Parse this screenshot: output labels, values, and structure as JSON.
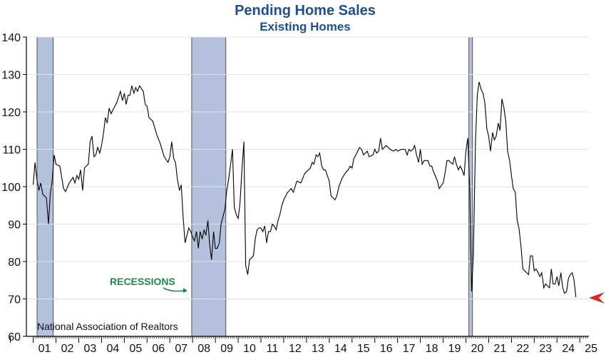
{
  "chart_data": {
    "type": "line",
    "title": "Pending Home Sales",
    "subtitle": "Existing Homes",
    "source": "National Association of Realtors",
    "annotation": "RECESSIONS",
    "ylim": [
      60,
      140
    ],
    "y_ticks": [
      "140",
      "130",
      "120",
      "110",
      "100",
      "90",
      "80",
      "70",
      "60"
    ],
    "xlim": [
      2000.7,
      2025.4
    ],
    "x_tick_labels": [
      "01",
      "02",
      "03",
      "04",
      "05",
      "06",
      "07",
      "08",
      "09",
      "10",
      "11",
      "12",
      "13",
      "14",
      "15",
      "16",
      "17",
      "18",
      "19",
      "20",
      "21",
      "22",
      "23",
      "24",
      "25"
    ],
    "grid": true,
    "colors": {
      "title": "#1f4e8c",
      "line": "#000000",
      "recession": "#b4c1dc",
      "annotation": "#1e8a4a",
      "marker": "#d9262b"
    },
    "recessions": [
      {
        "start": 2001.17,
        "end": 2001.88
      },
      {
        "start": 2007.96,
        "end": 2009.46
      },
      {
        "start": 2020.13,
        "end": 2020.29
      }
    ],
    "series": [
      {
        "values": [
          [
            2001.0,
            100.5
          ],
          [
            2001.08,
            106.5
          ],
          [
            2001.17,
            101.5
          ],
          [
            2001.25,
            99
          ],
          [
            2001.33,
            101
          ],
          [
            2001.42,
            98
          ],
          [
            2001.5,
            97.5
          ],
          [
            2001.58,
            97
          ],
          [
            2001.67,
            90
          ],
          [
            2001.75,
            98
          ],
          [
            2001.83,
            101.5
          ],
          [
            2001.92,
            108.5
          ],
          [
            2002.0,
            106
          ],
          [
            2002.17,
            105.5
          ],
          [
            2002.33,
            99.5
          ],
          [
            2002.42,
            98.7
          ],
          [
            2002.58,
            101
          ],
          [
            2002.75,
            102.5
          ],
          [
            2002.83,
            101
          ],
          [
            2002.92,
            103
          ],
          [
            2003.0,
            102
          ],
          [
            2003.08,
            104.5
          ],
          [
            2003.17,
            99
          ],
          [
            2003.25,
            105
          ],
          [
            2003.33,
            105.5
          ],
          [
            2003.42,
            106
          ],
          [
            2003.5,
            112
          ],
          [
            2003.58,
            113.5
          ],
          [
            2003.67,
            108
          ],
          [
            2003.75,
            108.5
          ],
          [
            2003.83,
            110.5
          ],
          [
            2003.92,
            109
          ],
          [
            2004.0,
            111
          ],
          [
            2004.08,
            114
          ],
          [
            2004.17,
            118.5
          ],
          [
            2004.25,
            117
          ],
          [
            2004.33,
            121
          ],
          [
            2004.42,
            119.5
          ],
          [
            2004.5,
            120.5
          ],
          [
            2004.67,
            122.5
          ],
          [
            2004.75,
            124
          ],
          [
            2004.83,
            125.5
          ],
          [
            2004.92,
            123
          ],
          [
            2005.0,
            125
          ],
          [
            2005.08,
            122
          ],
          [
            2005.17,
            124.5
          ],
          [
            2005.25,
            124.5
          ],
          [
            2005.33,
            127
          ],
          [
            2005.42,
            125
          ],
          [
            2005.5,
            126.5
          ],
          [
            2005.58,
            125.5
          ],
          [
            2005.67,
            127
          ],
          [
            2005.83,
            125.5
          ],
          [
            2005.92,
            122
          ],
          [
            2006.0,
            121.5
          ],
          [
            2006.08,
            118.5
          ],
          [
            2006.25,
            117.5
          ],
          [
            2006.42,
            114
          ],
          [
            2006.58,
            111.5
          ],
          [
            2006.75,
            108
          ],
          [
            2006.92,
            106.5
          ],
          [
            2007.0,
            108
          ],
          [
            2007.08,
            112
          ],
          [
            2007.17,
            107.5
          ],
          [
            2007.25,
            106.5
          ],
          [
            2007.33,
            102
          ],
          [
            2007.42,
            99
          ],
          [
            2007.5,
            100.5
          ],
          [
            2007.58,
            92
          ],
          [
            2007.67,
            85
          ],
          [
            2007.75,
            87
          ],
          [
            2007.83,
            89
          ],
          [
            2007.92,
            88
          ],
          [
            2008.0,
            86.5
          ],
          [
            2008.08,
            85.5
          ],
          [
            2008.17,
            88
          ],
          [
            2008.25,
            83.5
          ],
          [
            2008.33,
            88
          ],
          [
            2008.42,
            86
          ],
          [
            2008.5,
            88.5
          ],
          [
            2008.58,
            87
          ],
          [
            2008.67,
            91
          ],
          [
            2008.75,
            84.5
          ],
          [
            2008.83,
            80.5
          ],
          [
            2008.92,
            88
          ],
          [
            2009.0,
            83.5
          ],
          [
            2009.08,
            83.5
          ],
          [
            2009.17,
            85
          ],
          [
            2009.25,
            90
          ],
          [
            2009.33,
            92
          ],
          [
            2009.42,
            94
          ],
          [
            2009.5,
            99
          ],
          [
            2009.58,
            102
          ],
          [
            2009.67,
            106
          ],
          [
            2009.75,
            110
          ],
          [
            2009.83,
            94.5
          ],
          [
            2009.92,
            92.5
          ],
          [
            2010.0,
            91.5
          ],
          [
            2010.08,
            95.5
          ],
          [
            2010.17,
            105
          ],
          [
            2010.25,
            112
          ],
          [
            2010.33,
            79
          ],
          [
            2010.42,
            76.5
          ],
          [
            2010.5,
            80.5
          ],
          [
            2010.58,
            81
          ],
          [
            2010.67,
            81.5
          ],
          [
            2010.75,
            86
          ],
          [
            2010.83,
            88.5
          ],
          [
            2010.92,
            89
          ],
          [
            2011.0,
            89
          ],
          [
            2011.08,
            88
          ],
          [
            2011.17,
            89.5
          ],
          [
            2011.25,
            85
          ],
          [
            2011.33,
            88
          ],
          [
            2011.42,
            88
          ],
          [
            2011.5,
            90
          ],
          [
            2011.58,
            89.5
          ],
          [
            2011.67,
            88.5
          ],
          [
            2011.75,
            91
          ],
          [
            2011.83,
            92.5
          ],
          [
            2011.92,
            95
          ],
          [
            2012.0,
            96.5
          ],
          [
            2012.17,
            98.5
          ],
          [
            2012.33,
            99.5
          ],
          [
            2012.42,
            98.5
          ],
          [
            2012.58,
            101.5
          ],
          [
            2012.75,
            101
          ],
          [
            2012.92,
            103.5
          ],
          [
            2013.0,
            104
          ],
          [
            2013.17,
            105
          ],
          [
            2013.25,
            106.5
          ],
          [
            2013.33,
            106
          ],
          [
            2013.42,
            108.5
          ],
          [
            2013.5,
            108
          ],
          [
            2013.58,
            109
          ],
          [
            2013.67,
            105.5
          ],
          [
            2013.75,
            104.5
          ],
          [
            2013.83,
            104.5
          ],
          [
            2014.0,
            101.5
          ],
          [
            2014.08,
            97.5
          ],
          [
            2014.17,
            97
          ],
          [
            2014.25,
            96.5
          ],
          [
            2014.33,
            97.5
          ],
          [
            2014.42,
            100
          ],
          [
            2014.58,
            102.5
          ],
          [
            2014.75,
            104
          ],
          [
            2014.83,
            104.5
          ],
          [
            2014.92,
            105.5
          ],
          [
            2015.0,
            105
          ],
          [
            2015.08,
            107.5
          ],
          [
            2015.17,
            108.5
          ],
          [
            2015.33,
            110.5
          ],
          [
            2015.42,
            110
          ],
          [
            2015.5,
            108.5
          ],
          [
            2015.67,
            109.5
          ],
          [
            2015.75,
            108
          ],
          [
            2015.92,
            108.5
          ],
          [
            2016.0,
            110
          ],
          [
            2016.08,
            109
          ],
          [
            2016.17,
            109.5
          ],
          [
            2016.25,
            113
          ],
          [
            2016.33,
            110
          ],
          [
            2016.5,
            111
          ],
          [
            2016.67,
            110
          ],
          [
            2016.83,
            109.5
          ],
          [
            2016.92,
            110
          ],
          [
            2017.0,
            109.5
          ],
          [
            2017.17,
            110
          ],
          [
            2017.33,
            110
          ],
          [
            2017.42,
            108.5
          ],
          [
            2017.5,
            110
          ],
          [
            2017.58,
            109.5
          ],
          [
            2017.67,
            110
          ],
          [
            2017.75,
            111
          ],
          [
            2017.83,
            108.5
          ],
          [
            2017.92,
            106.5
          ],
          [
            2018.0,
            110
          ],
          [
            2018.08,
            106
          ],
          [
            2018.17,
            107
          ],
          [
            2018.33,
            107
          ],
          [
            2018.42,
            105.5
          ],
          [
            2018.5,
            105.5
          ],
          [
            2018.58,
            104
          ],
          [
            2018.75,
            101.5
          ],
          [
            2018.83,
            99.5
          ],
          [
            2019.0,
            101
          ],
          [
            2019.08,
            103.5
          ],
          [
            2019.17,
            107
          ],
          [
            2019.25,
            107
          ],
          [
            2019.42,
            106
          ],
          [
            2019.5,
            108
          ],
          [
            2019.58,
            106
          ],
          [
            2019.67,
            104.5
          ],
          [
            2019.75,
            105.5
          ],
          [
            2019.83,
            104.5
          ],
          [
            2019.92,
            103
          ],
          [
            2020.0,
            109.5
          ],
          [
            2020.08,
            113
          ],
          [
            2020.17,
            99
          ],
          [
            2020.25,
            72
          ],
          [
            2020.33,
            82
          ],
          [
            2020.42,
            112
          ],
          [
            2020.5,
            124.5
          ],
          [
            2020.58,
            128
          ],
          [
            2020.67,
            126
          ],
          [
            2020.75,
            125
          ],
          [
            2020.83,
            122.5
          ],
          [
            2020.92,
            115.5
          ],
          [
            2021.0,
            113.5
          ],
          [
            2021.08,
            109.5
          ],
          [
            2021.17,
            114.5
          ],
          [
            2021.25,
            112.5
          ],
          [
            2021.33,
            113.5
          ],
          [
            2021.42,
            117
          ],
          [
            2021.5,
            115
          ],
          [
            2021.58,
            123.5
          ],
          [
            2021.67,
            121
          ],
          [
            2021.75,
            117.5
          ],
          [
            2021.83,
            109.5
          ],
          [
            2021.92,
            107
          ],
          [
            2022.0,
            103
          ],
          [
            2022.08,
            99.5
          ],
          [
            2022.17,
            98.5
          ],
          [
            2022.25,
            91
          ],
          [
            2022.33,
            89
          ],
          [
            2022.42,
            84
          ],
          [
            2022.5,
            78
          ],
          [
            2022.58,
            77.5
          ],
          [
            2022.67,
            77
          ],
          [
            2022.75,
            76.5
          ],
          [
            2022.83,
            81.5
          ],
          [
            2022.92,
            81.5
          ],
          [
            2023.0,
            77.5
          ],
          [
            2023.08,
            78
          ],
          [
            2023.17,
            77
          ],
          [
            2023.25,
            76
          ],
          [
            2023.33,
            77
          ],
          [
            2023.42,
            73
          ],
          [
            2023.5,
            74
          ],
          [
            2023.58,
            73.5
          ],
          [
            2023.67,
            73
          ],
          [
            2023.75,
            78
          ],
          [
            2023.83,
            74
          ],
          [
            2023.92,
            74
          ],
          [
            2024.0,
            76
          ],
          [
            2024.08,
            73.5
          ],
          [
            2024.17,
            77
          ],
          [
            2024.25,
            73
          ],
          [
            2024.33,
            71.5
          ],
          [
            2024.42,
            72
          ],
          [
            2024.5,
            75.5
          ],
          [
            2024.58,
            76.5
          ],
          [
            2024.67,
            77
          ],
          [
            2024.75,
            75
          ],
          [
            2024.83,
            70.5
          ]
        ]
      }
    ]
  }
}
